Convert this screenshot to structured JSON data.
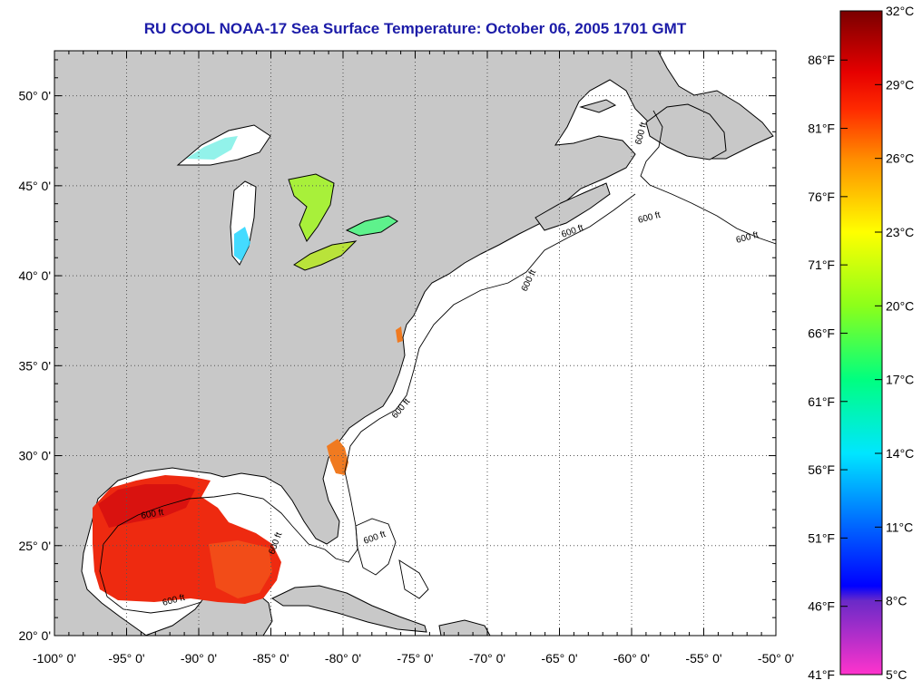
{
  "title": "RU COOL  NOAA-17  Sea Surface Temperature:  October 06, 2005 1701 GMT",
  "map": {
    "lon_range": [
      -100,
      -50
    ],
    "lat_range": [
      20,
      52.5
    ],
    "lat_ticks": [
      {
        "value": 50,
        "label": "50° 0'"
      },
      {
        "value": 45,
        "label": "45° 0'"
      },
      {
        "value": 40,
        "label": "40° 0'"
      },
      {
        "value": 35,
        "label": "35° 0'"
      },
      {
        "value": 30,
        "label": "30° 0'"
      },
      {
        "value": 25,
        "label": "25° 0'"
      },
      {
        "value": 20,
        "label": "20° 0'"
      }
    ],
    "lon_ticks": [
      {
        "value": -100,
        "label": "-100° 0'"
      },
      {
        "value": -95,
        "label": "-95° 0'"
      },
      {
        "value": -90,
        "label": "-90° 0'"
      },
      {
        "value": -85,
        "label": "-85° 0'"
      },
      {
        "value": -80,
        "label": "-80° 0'"
      },
      {
        "value": -75,
        "label": "-75° 0'"
      },
      {
        "value": -70,
        "label": "-70° 0'"
      },
      {
        "value": -65,
        "label": "-65° 0'"
      },
      {
        "value": -60,
        "label": "-60° 0'"
      },
      {
        "value": -55,
        "label": "-55° 0'"
      },
      {
        "value": -50,
        "label": "-50° 0'"
      }
    ],
    "grid": true,
    "contour_label": "600 ft",
    "colors": {
      "land": "#c8c8c8",
      "water": "#ffffff",
      "coast": "#000000"
    }
  },
  "colorbar": {
    "range_c": [
      5,
      32
    ],
    "celsius_ticks": [
      {
        "value": 32,
        "label": "32°C"
      },
      {
        "value": 29,
        "label": "29°C"
      },
      {
        "value": 26,
        "label": "26°C"
      },
      {
        "value": 23,
        "label": "23°C"
      },
      {
        "value": 20,
        "label": "20°C"
      },
      {
        "value": 17,
        "label": "17°C"
      },
      {
        "value": 14,
        "label": "14°C"
      },
      {
        "value": 11,
        "label": "11°C"
      },
      {
        "value": 8,
        "label": "8°C"
      },
      {
        "value": 5,
        "label": "5°C"
      }
    ],
    "fahrenheit_ticks": [
      {
        "value": 86,
        "label": "86°F"
      },
      {
        "value": 81,
        "label": "81°F"
      },
      {
        "value": 76,
        "label": "76°F"
      },
      {
        "value": 71,
        "label": "71°F"
      },
      {
        "value": 66,
        "label": "66°F"
      },
      {
        "value": 61,
        "label": "61°F"
      },
      {
        "value": 56,
        "label": "56°F"
      },
      {
        "value": 51,
        "label": "51°F"
      },
      {
        "value": 46,
        "label": "46°F"
      },
      {
        "value": 41,
        "label": "41°F"
      }
    ],
    "gradient_stops": [
      {
        "c": 32,
        "color": "#7a0000"
      },
      {
        "c": 29.5,
        "color": "#e60000"
      },
      {
        "c": 28,
        "color": "#ff2a00"
      },
      {
        "c": 26,
        "color": "#ff8c00"
      },
      {
        "c": 23,
        "color": "#ffff00"
      },
      {
        "c": 20,
        "color": "#8cff1a"
      },
      {
        "c": 17,
        "color": "#00ff80"
      },
      {
        "c": 14,
        "color": "#00e6ff"
      },
      {
        "c": 11,
        "color": "#0064ff"
      },
      {
        "c": 8.6,
        "color": "#0000ff"
      },
      {
        "c": 8,
        "color": "#6a2ac8"
      },
      {
        "c": 5,
        "color": "#ff33cc"
      }
    ]
  }
}
